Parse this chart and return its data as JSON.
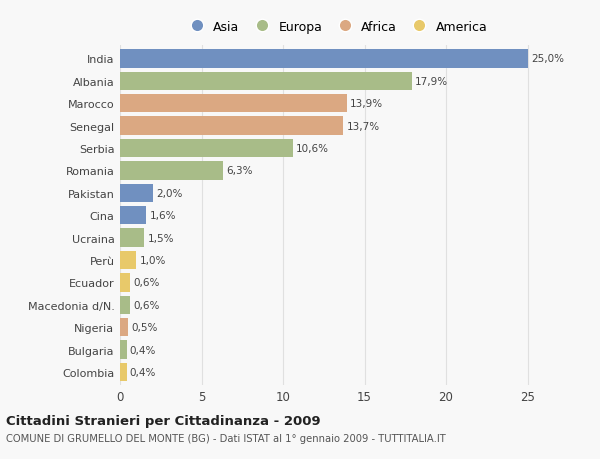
{
  "countries": [
    "India",
    "Albania",
    "Marocco",
    "Senegal",
    "Serbia",
    "Romania",
    "Pakistan",
    "Cina",
    "Ucraina",
    "Perù",
    "Ecuador",
    "Macedonia d/N.",
    "Nigeria",
    "Bulgaria",
    "Colombia"
  ],
  "values": [
    25.0,
    17.9,
    13.9,
    13.7,
    10.6,
    6.3,
    2.0,
    1.6,
    1.5,
    1.0,
    0.6,
    0.6,
    0.5,
    0.4,
    0.4
  ],
  "labels": [
    "25,0%",
    "17,9%",
    "13,9%",
    "13,7%",
    "10,6%",
    "6,3%",
    "2,0%",
    "1,6%",
    "1,5%",
    "1,0%",
    "0,6%",
    "0,6%",
    "0,5%",
    "0,4%",
    "0,4%"
  ],
  "continents": [
    "Asia",
    "Europa",
    "Africa",
    "Africa",
    "Europa",
    "Europa",
    "Asia",
    "Asia",
    "Europa",
    "America",
    "America",
    "Europa",
    "Africa",
    "Europa",
    "America"
  ],
  "colors": {
    "Asia": "#7090c0",
    "Europa": "#a8bc88",
    "Africa": "#dba882",
    "America": "#e8c96a"
  },
  "legend_order": [
    "Asia",
    "Europa",
    "Africa",
    "America"
  ],
  "title": "Cittadini Stranieri per Cittadinanza - 2009",
  "subtitle": "COMUNE DI GRUMELLO DEL MONTE (BG) - Dati ISTAT al 1° gennaio 2009 - TUTTITALIA.IT",
  "xlim": [
    0,
    26.5
  ],
  "xticks": [
    0,
    5,
    10,
    15,
    20,
    25
  ],
  "background_color": "#f8f8f8",
  "grid_color": "#e0e0e0",
  "bar_height": 0.82
}
